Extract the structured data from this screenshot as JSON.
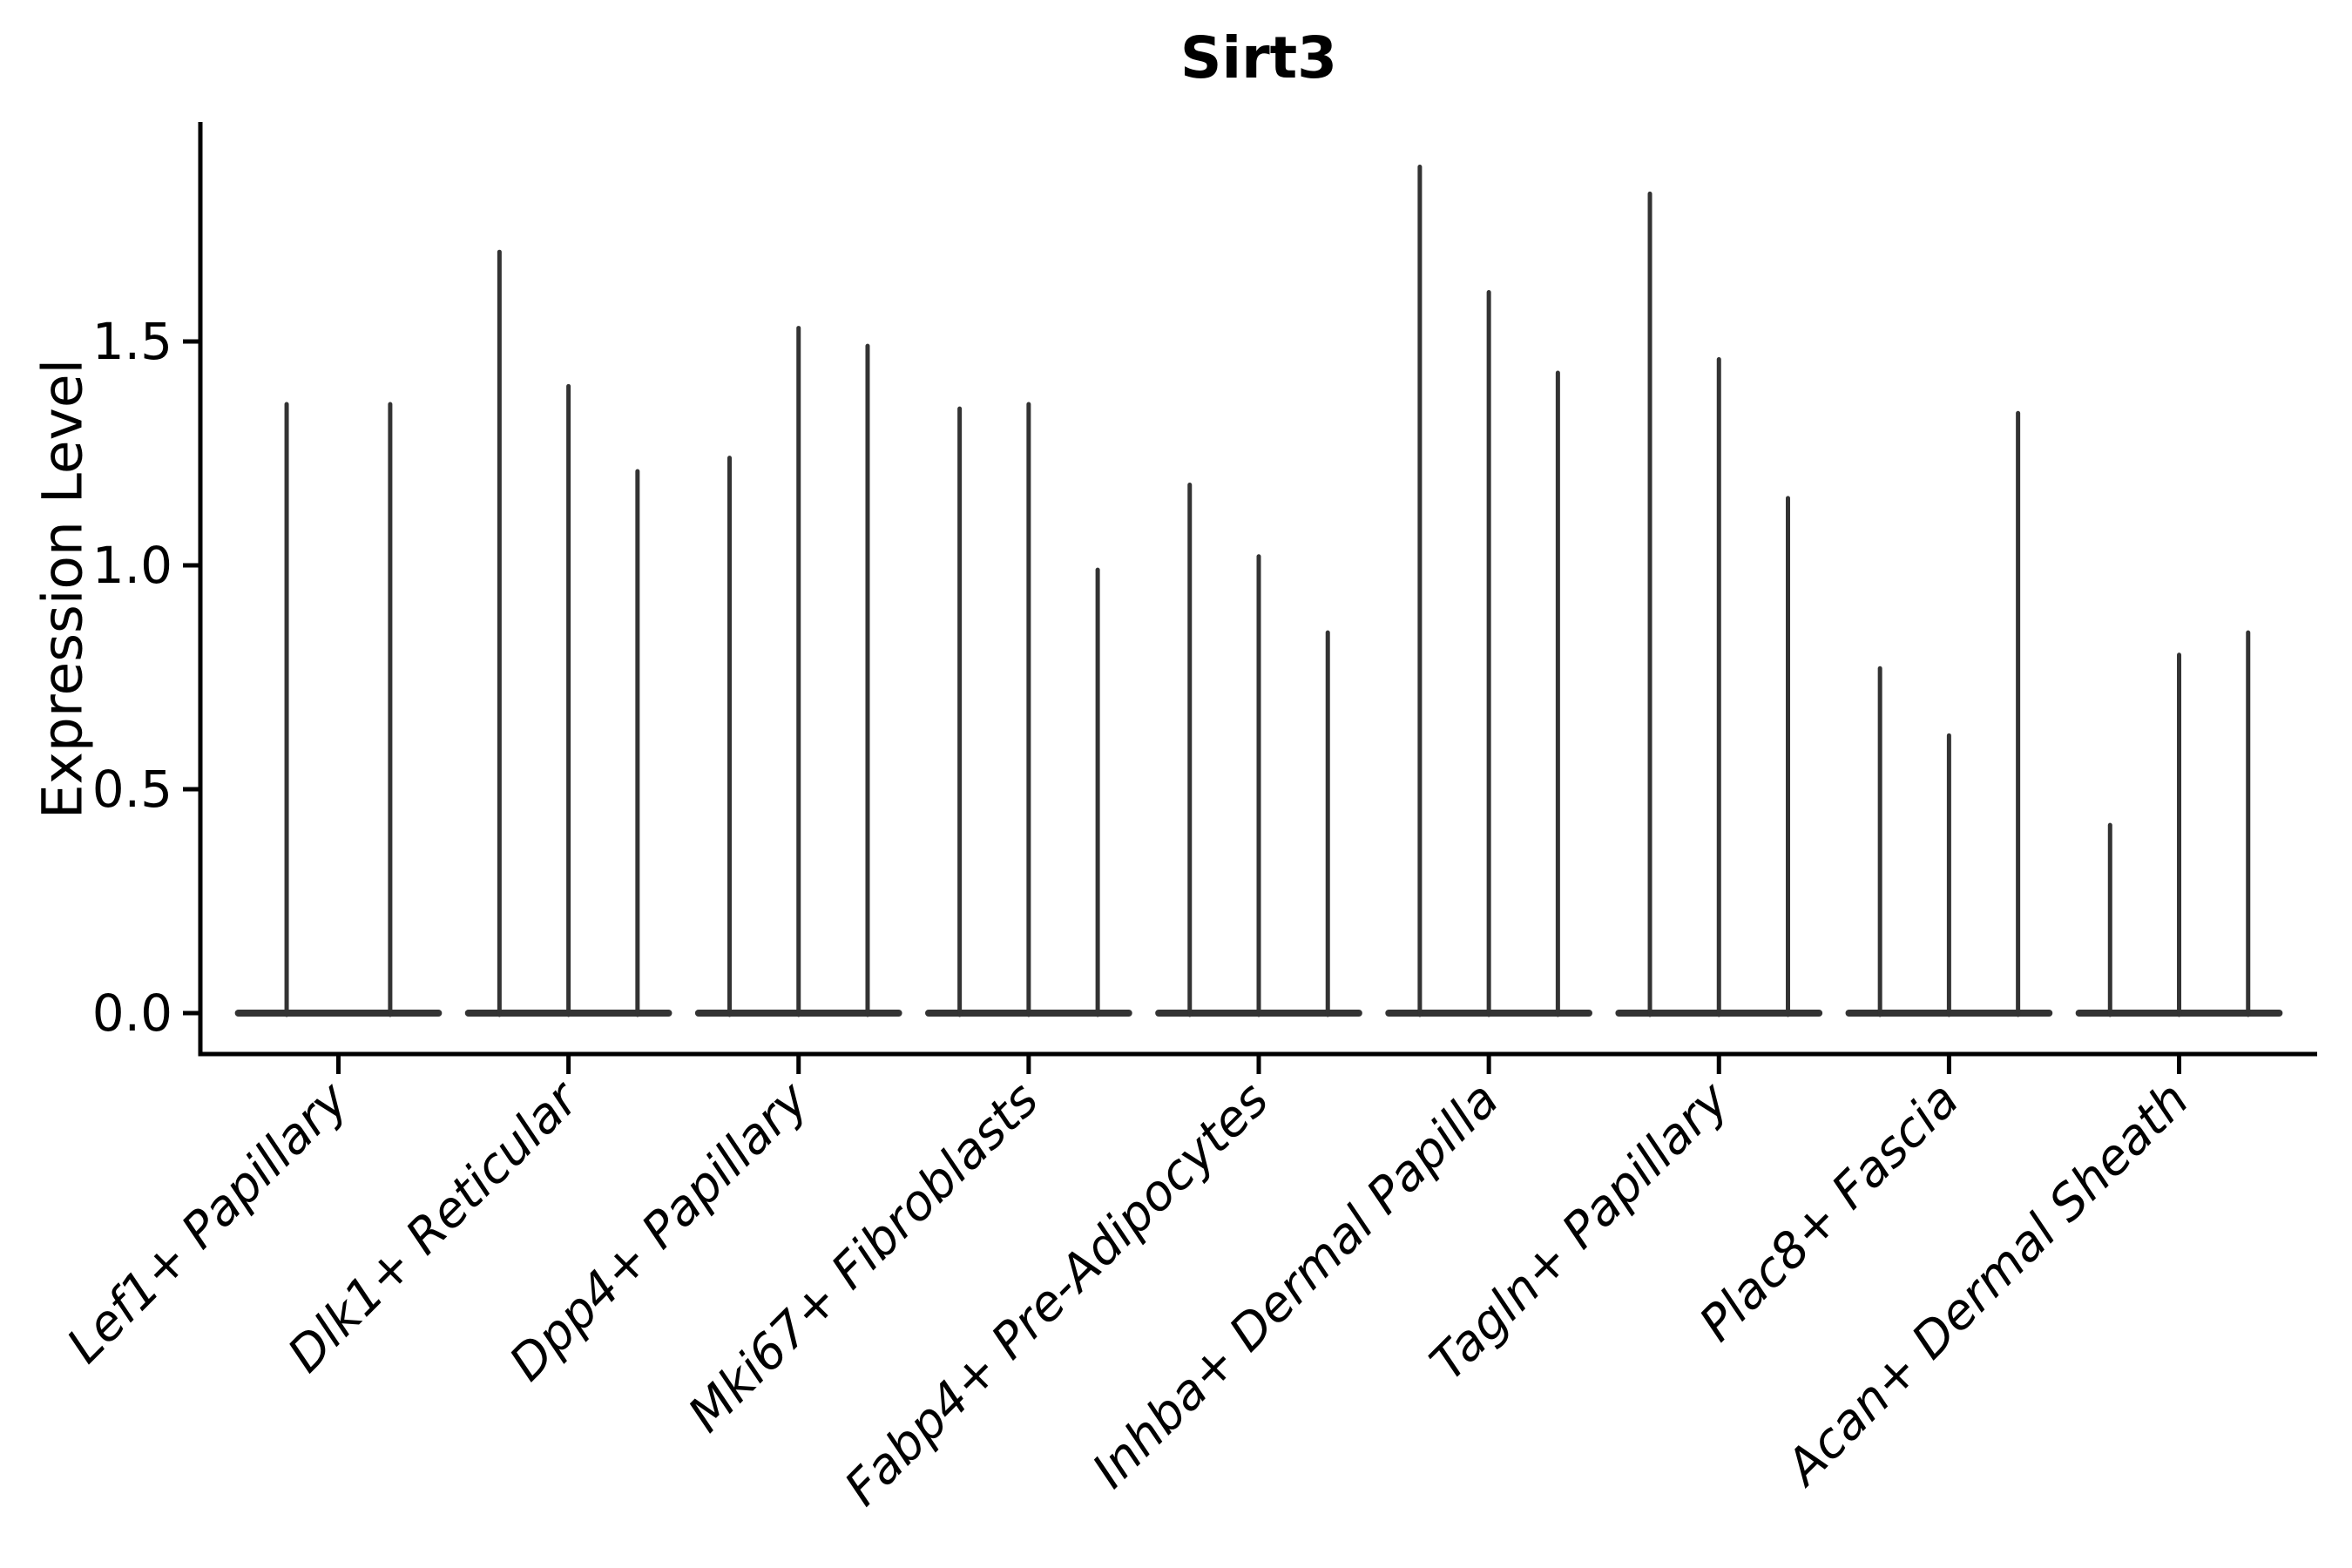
{
  "chart_data": {
    "type": "violin",
    "title": "Sirt3",
    "xlabel": "",
    "ylabel": "Expression Level",
    "ytick_labels": [
      "0.0",
      "0.5",
      "1.0",
      "1.5"
    ],
    "ytick_values": [
      0.0,
      0.5,
      1.0,
      1.5
    ],
    "ylim": [
      -0.09,
      1.98
    ],
    "grid": false,
    "legend_position": "none",
    "categories": [
      "Lef1+ Papillary",
      "Dlk1+ Reticular",
      "Dpp4+ Papillary",
      "Mki67+ Fibroblasts",
      "Fabp4+ Pre-Adipocytes",
      "Inhba+ Dermal Papilla",
      "Tagln+ Papillary",
      "Plac8+ Fascia",
      "Acan+ Dermal Sheath"
    ],
    "groups": [
      {
        "category": "Lef1+ Papillary",
        "violin_maxima": [
          1.36,
          1.36
        ]
      },
      {
        "category": "Dlk1+ Reticular",
        "violin_maxima": [
          1.7,
          1.4,
          1.21
        ]
      },
      {
        "category": "Dpp4+ Papillary",
        "violin_maxima": [
          1.24,
          1.53,
          1.49
        ]
      },
      {
        "category": "Mki67+ Fibroblasts",
        "violin_maxima": [
          1.35,
          1.36,
          0.99
        ]
      },
      {
        "category": "Fabp4+ Pre-Adipocytes",
        "violin_maxima": [
          1.18,
          1.02,
          0.85
        ]
      },
      {
        "category": "Inhba+ Dermal Papilla",
        "violin_maxima": [
          1.89,
          1.61,
          1.43
        ]
      },
      {
        "category": "Tagln+ Papillary",
        "violin_maxima": [
          1.83,
          1.46,
          1.15
        ]
      },
      {
        "category": "Plac8+ Fascia",
        "violin_maxima": [
          0.77,
          0.62,
          1.34
        ]
      },
      {
        "category": "Acan+ Dermal Sheath",
        "violin_maxima": [
          0.42,
          0.8,
          0.85
        ]
      }
    ],
    "violins_all_at_zero_baseline": true,
    "colors": {
      "violin": "#333333",
      "axis": "#000000",
      "text": "#000000",
      "background": "#ffffff"
    }
  }
}
